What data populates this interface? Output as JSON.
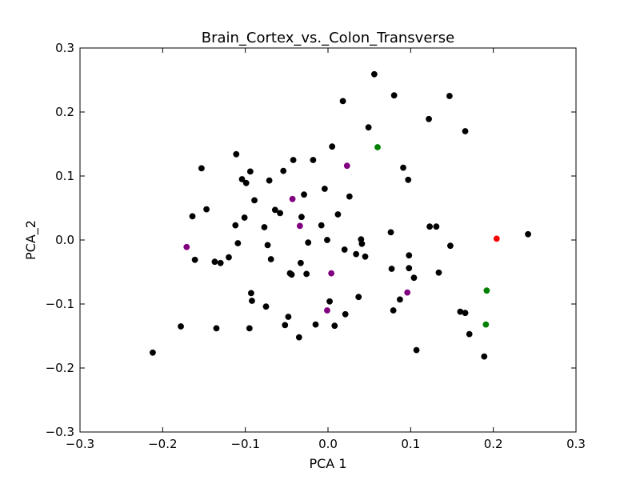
{
  "chart_data": {
    "type": "scatter",
    "title": "Brain_Cortex_vs._Colon_Transverse",
    "xlabel": "PCA 1",
    "ylabel": "PCA_2",
    "xlim": [
      -0.3,
      0.3
    ],
    "ylim": [
      -0.3,
      0.3
    ],
    "xticks": [
      -0.3,
      -0.2,
      -0.1,
      0.0,
      0.1,
      0.2,
      0.3
    ],
    "yticks": [
      -0.3,
      -0.2,
      -0.1,
      0.0,
      0.1,
      0.2,
      0.3
    ],
    "xtick_labels": [
      "−0.3",
      "−0.2",
      "−0.1",
      "0.0",
      "0.1",
      "0.2",
      "0.3"
    ],
    "ytick_labels": [
      "−0.3",
      "−0.2",
      "−0.1",
      "0.0",
      "0.1",
      "0.2",
      "0.3"
    ],
    "grid": false,
    "series": [
      {
        "color": "#000000",
        "points": [
          [
            -0.212,
            -0.176
          ],
          [
            -0.178,
            -0.135
          ],
          [
            -0.164,
            0.037
          ],
          [
            -0.161,
            -0.031
          ],
          [
            -0.153,
            0.112
          ],
          [
            -0.147,
            0.048
          ],
          [
            -0.137,
            -0.034
          ],
          [
            -0.135,
            -0.138
          ],
          [
            -0.13,
            -0.036
          ],
          [
            -0.12,
            -0.027
          ],
          [
            -0.112,
            0.023
          ],
          [
            -0.111,
            0.134
          ],
          [
            -0.109,
            -0.005
          ],
          [
            -0.104,
            0.095
          ],
          [
            -0.101,
            0.035
          ],
          [
            -0.099,
            0.089
          ],
          [
            -0.095,
            -0.138
          ],
          [
            -0.094,
            0.107
          ],
          [
            -0.093,
            -0.083
          ],
          [
            -0.092,
            -0.095
          ],
          [
            -0.089,
            0.062
          ],
          [
            -0.077,
            0.02
          ],
          [
            -0.075,
            -0.104
          ],
          [
            -0.073,
            -0.008
          ],
          [
            -0.071,
            0.093
          ],
          [
            -0.069,
            -0.03
          ],
          [
            -0.064,
            0.047
          ],
          [
            -0.058,
            0.042
          ],
          [
            -0.054,
            0.108
          ],
          [
            -0.052,
            -0.133
          ],
          [
            -0.048,
            -0.12
          ],
          [
            -0.046,
            -0.052
          ],
          [
            -0.044,
            -0.054
          ],
          [
            -0.042,
            0.125
          ],
          [
            -0.035,
            -0.152
          ],
          [
            -0.033,
            -0.036
          ],
          [
            -0.032,
            0.036
          ],
          [
            -0.029,
            0.071
          ],
          [
            -0.026,
            -0.053
          ],
          [
            -0.024,
            -0.004
          ],
          [
            -0.018,
            0.125
          ],
          [
            -0.015,
            -0.132
          ],
          [
            -0.008,
            0.023
          ],
          [
            -0.004,
            0.08
          ],
          [
            -0.001,
            0.0
          ],
          [
            0.002,
            -0.096
          ],
          [
            0.005,
            0.146
          ],
          [
            0.008,
            -0.134
          ],
          [
            0.012,
            0.04
          ],
          [
            0.018,
            0.217
          ],
          [
            0.02,
            -0.015
          ],
          [
            0.021,
            -0.116
          ],
          [
            0.026,
            0.068
          ],
          [
            0.034,
            -0.022
          ],
          [
            0.037,
            -0.089
          ],
          [
            0.04,
            0.001
          ],
          [
            0.041,
            -0.006
          ],
          [
            0.045,
            -0.026
          ],
          [
            0.049,
            0.176
          ],
          [
            0.056,
            0.259
          ],
          [
            0.076,
            0.012
          ],
          [
            0.077,
            -0.045
          ],
          [
            0.079,
            -0.11
          ],
          [
            0.08,
            0.226
          ],
          [
            0.087,
            -0.093
          ],
          [
            0.091,
            0.113
          ],
          [
            0.097,
            0.094
          ],
          [
            0.098,
            -0.044
          ],
          [
            0.098,
            -0.024
          ],
          [
            0.104,
            -0.059
          ],
          [
            0.107,
            -0.172
          ],
          [
            0.122,
            0.189
          ],
          [
            0.123,
            0.021
          ],
          [
            0.131,
            0.021
          ],
          [
            0.134,
            -0.051
          ],
          [
            0.147,
            0.225
          ],
          [
            0.148,
            -0.009
          ],
          [
            0.16,
            -0.112
          ],
          [
            0.166,
            0.17
          ],
          [
            0.166,
            -0.114
          ],
          [
            0.171,
            -0.147
          ],
          [
            0.189,
            -0.182
          ],
          [
            0.242,
            0.009
          ]
        ]
      },
      {
        "color": "#800080",
        "points": [
          [
            -0.171,
            -0.011
          ],
          [
            -0.043,
            0.064
          ],
          [
            -0.034,
            0.022
          ],
          [
            -0.001,
            -0.11
          ],
          [
            0.004,
            -0.052
          ],
          [
            0.023,
            0.116
          ],
          [
            0.096,
            -0.082
          ]
        ]
      },
      {
        "color": "#008000",
        "points": [
          [
            0.06,
            0.145
          ],
          [
            0.192,
            -0.079
          ],
          [
            0.191,
            -0.132
          ]
        ]
      },
      {
        "color": "#ff0000",
        "points": [
          [
            0.204,
            0.002
          ]
        ]
      }
    ]
  }
}
